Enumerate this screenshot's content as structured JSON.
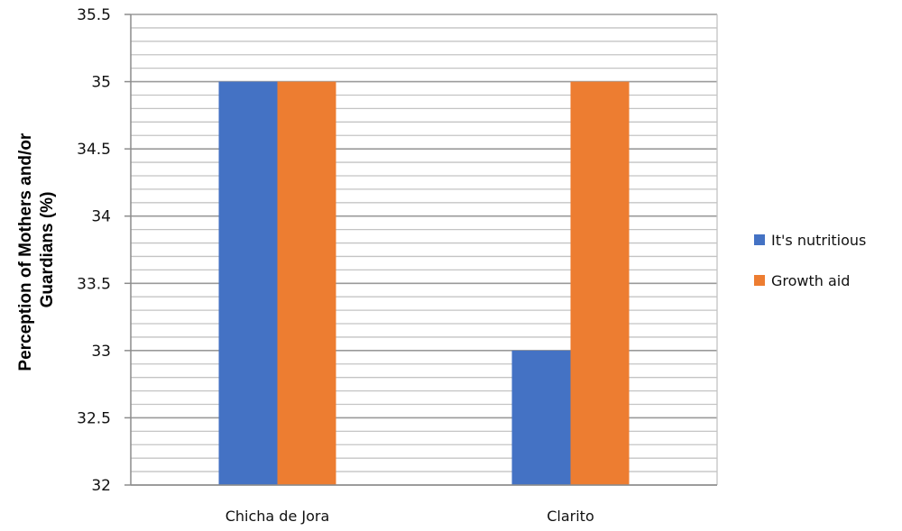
{
  "chart_data": {
    "type": "bar",
    "title": "",
    "xlabel": "",
    "ylabel_lines": [
      "Perception of Mothers and/or",
      "Guardians (%)"
    ],
    "categories": [
      "Chicha de Jora",
      "Clarito"
    ],
    "series": [
      {
        "name": "It's nutritious",
        "values": [
          35,
          33
        ],
        "color": "#4472C4"
      },
      {
        "name": "Growth aid",
        "values": [
          35,
          35
        ],
        "color": "#ED7D31"
      }
    ],
    "ylim": [
      32,
      35.5
    ],
    "major_step": 0.5,
    "minor_step": 0.1,
    "yticks": [
      "32",
      "32.5",
      "33",
      "33.5",
      "34",
      "34.5",
      "35",
      "35.5"
    ],
    "grid": true,
    "legend_position": "right"
  }
}
